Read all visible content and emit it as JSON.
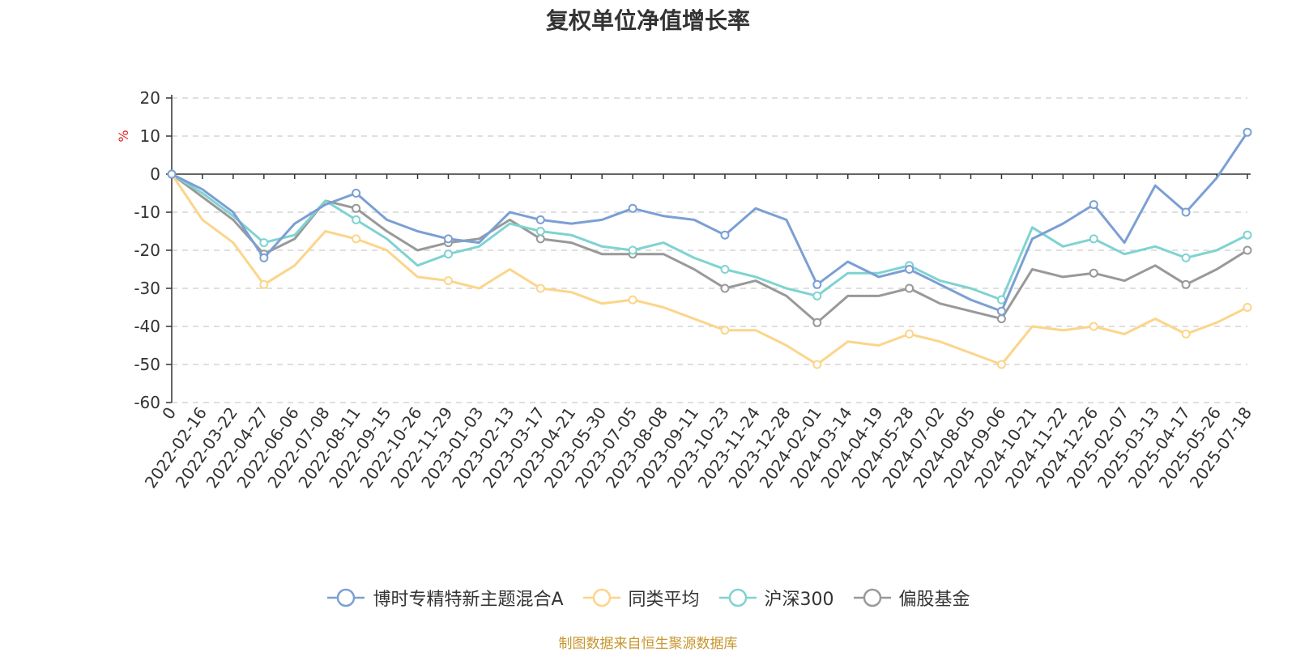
{
  "chart_data": {
    "type": "line",
    "title": "复权单位净值增长率",
    "ylabel": "%",
    "ylim": [
      -60,
      20
    ],
    "yticks": [
      20,
      10,
      0,
      -10,
      -20,
      -30,
      -40,
      -50,
      -60
    ],
    "grid": true,
    "legend_position": "bottom",
    "x": [
      "0",
      "2022-02-16",
      "2022-03-22",
      "2022-04-27",
      "2022-06-06",
      "2022-07-08",
      "2022-08-11",
      "2022-09-15",
      "2022-10-26",
      "2022-11-29",
      "2023-01-03",
      "2023-02-13",
      "2023-03-17",
      "2023-04-21",
      "2023-05-30",
      "2023-07-05",
      "2023-08-08",
      "2023-09-11",
      "2023-10-23",
      "2023-11-24",
      "2023-12-28",
      "2024-02-01",
      "2024-03-14",
      "2024-04-19",
      "2024-05-28",
      "2024-07-02",
      "2024-08-05",
      "2024-09-06",
      "2024-10-21",
      "2024-11-22",
      "2024-12-26",
      "2025-02-07",
      "2025-03-13",
      "2025-04-17",
      "2025-05-26",
      "2025-07-18"
    ],
    "series": [
      {
        "name": "博时专精特新主题混合A",
        "color": "#7b9fd4",
        "values": [
          0,
          -4,
          -10,
          -22,
          -13,
          -8,
          -5,
          -12,
          -15,
          -17,
          -18,
          -10,
          -12,
          -13,
          -12,
          -9,
          -11,
          -12,
          -16,
          -9,
          -12,
          -29,
          -23,
          -27,
          -25,
          -29,
          -33,
          -36,
          -17,
          -13,
          -8,
          -18,
          -3,
          -10,
          -1,
          11
        ]
      },
      {
        "name": "同类平均",
        "color": "#fbd58a",
        "values": [
          0,
          -12,
          -18,
          -29,
          -24,
          -15,
          -17,
          -20,
          -27,
          -28,
          -30,
          -25,
          -30,
          -31,
          -34,
          -33,
          -35,
          -38,
          -41,
          -41,
          -45,
          -50,
          -44,
          -45,
          -42,
          -44,
          -47,
          -50,
          -40,
          -41,
          -40,
          -42,
          -38,
          -42,
          -39,
          -35
        ]
      },
      {
        "name": "沪深300",
        "color": "#7fd3d1",
        "values": [
          0,
          -5,
          -11,
          -18,
          -16,
          -7,
          -12,
          -17,
          -24,
          -21,
          -19,
          -13,
          -15,
          -16,
          -19,
          -20,
          -18,
          -22,
          -25,
          -27,
          -30,
          -32,
          -26,
          -26,
          -24,
          -28,
          -30,
          -33,
          -14,
          -19,
          -17,
          -21,
          -19,
          -22,
          -20,
          -16
        ]
      },
      {
        "name": "偏股基金",
        "color": "#999999",
        "values": [
          0,
          -6,
          -12,
          -21,
          -17,
          -7,
          -9,
          -15,
          -20,
          -18,
          -17,
          -12,
          -17,
          -18,
          -21,
          -21,
          -21,
          -25,
          -30,
          -28,
          -32,
          -39,
          -32,
          -32,
          -30,
          -34,
          -36,
          -38,
          -25,
          -27,
          -26,
          -28,
          -24,
          -29,
          -25,
          -20
        ]
      }
    ]
  },
  "source_text": "制图数据来自恒生聚源数据库"
}
